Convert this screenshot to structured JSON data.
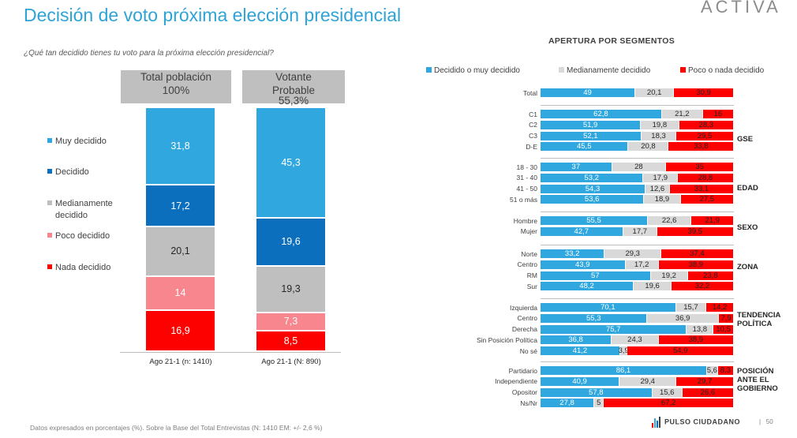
{
  "title": "Decisión de voto próxima elección presidencial",
  "logo": "ACTIVA",
  "question": "¿Qué tan decidido tienes tu voto para la próxima elección presidencial?",
  "footer": "Datos expresados en porcentajes (%). Sobre la Base del Total Entrevistas (N: 1410  EM: +/- 2,6 %)",
  "brand": "PULSO CIUDADANO",
  "page_number": "50",
  "colors": {
    "muy_decidido": "#30a7df",
    "decidido": "#0b6fbe",
    "medianamente": "#bfbfbf",
    "poco": "#f7868e",
    "nada": "#fd0000",
    "title": "#2fa3d6"
  },
  "chart_data": [
    {
      "type": "bar",
      "stacked": true,
      "headers": [
        {
          "line1": "Total población",
          "line2": "100%"
        },
        {
          "line1": "Votante",
          "line2": "Probable",
          "line3": "55,3%"
        }
      ],
      "categories": [
        "Ago 21-1 (n: 1410)",
        "Ago 21-1 (N: 890)"
      ],
      "series": [
        {
          "name": "Muy decidido",
          "values": [
            31.8,
            45.3
          ],
          "labels": [
            "31,8",
            "45,3"
          ],
          "color": "#30a7df"
        },
        {
          "name": "Decidido",
          "values": [
            17.2,
            19.6
          ],
          "labels": [
            "17,2",
            "19,6"
          ],
          "color": "#0b6fbe"
        },
        {
          "name": "Medianamente decidido",
          "values": [
            20.1,
            19.3
          ],
          "labels": [
            "20,1",
            "19,3"
          ],
          "color": "#bfbfbf"
        },
        {
          "name": "Poco decidido",
          "values": [
            14,
            7.3
          ],
          "labels": [
            "14",
            "7,3"
          ],
          "color": "#f7868e"
        },
        {
          "name": "Nada decidido",
          "values": [
            16.9,
            8.5
          ],
          "labels": [
            "16,9",
            "8,5"
          ],
          "color": "#fd0000"
        }
      ],
      "legend": [
        {
          "line1": "Muy decidido",
          "color": "#30a7df"
        },
        {
          "line1": "Decidido",
          "color": "#0b6fbe"
        },
        {
          "line1": "Medianamente",
          "line2": "decidido",
          "color": "#bfbfbf"
        },
        {
          "line1": "Poco decidido",
          "color": "#f7868e"
        },
        {
          "line1": "Nada decidido",
          "color": "#fd0000"
        }
      ]
    },
    {
      "type": "bar",
      "orientation": "horizontal",
      "stacked": true,
      "title": "APERTURA POR SEGMENTOS",
      "legend": [
        "Decidido o muy decidido",
        "Medianamente decidido",
        "Poco o nada decidido"
      ],
      "legend_colors": [
        "#30a7df",
        "#d9d9d9",
        "#fd0000"
      ],
      "groups": [
        {
          "name": "",
          "rows": [
            {
              "label": "Total",
              "values": [
                49,
                20.1,
                30.9
              ],
              "labels": [
                "49",
                "20,1",
                "30,9"
              ]
            }
          ]
        },
        {
          "name": "GSE",
          "rows": [
            {
              "label": "C1",
              "values": [
                62.8,
                21.2,
                16
              ],
              "labels": [
                "62,8",
                "21,2",
                "16"
              ]
            },
            {
              "label": "C2",
              "values": [
                51.9,
                19.8,
                28.3
              ],
              "labels": [
                "51,9",
                "19,8",
                "28,3"
              ]
            },
            {
              "label": "C3",
              "values": [
                52.1,
                18.3,
                29.5
              ],
              "labels": [
                "52,1",
                "18,3",
                "29,5"
              ]
            },
            {
              "label": "D-E",
              "values": [
                45.5,
                20.8,
                33.8
              ],
              "labels": [
                "45,5",
                "20,8",
                "33,8"
              ]
            }
          ]
        },
        {
          "name": "EDAD",
          "rows": [
            {
              "label": "18 - 30",
              "values": [
                37,
                28,
                35
              ],
              "labels": [
                "37",
                "28",
                "35"
              ]
            },
            {
              "label": "31 - 40",
              "values": [
                53.2,
                17.9,
                28.8
              ],
              "labels": [
                "53,2",
                "17,9",
                "28,8"
              ]
            },
            {
              "label": "41 - 50",
              "values": [
                54.3,
                12.6,
                33.1
              ],
              "labels": [
                "54,3",
                "12,6",
                "33,1"
              ]
            },
            {
              "label": "51 o más",
              "values": [
                53.6,
                18.9,
                27.5
              ],
              "labels": [
                "53,6",
                "18,9",
                "27,5"
              ]
            }
          ]
        },
        {
          "name": "SEXO",
          "rows": [
            {
              "label": "Hombre",
              "values": [
                55.5,
                22.6,
                21.9
              ],
              "labels": [
                "55,5",
                "22,6",
                "21,9"
              ]
            },
            {
              "label": "Mujer",
              "values": [
                42.7,
                17.7,
                39.5
              ],
              "labels": [
                "42,7",
                "17,7",
                "39,5"
              ]
            }
          ]
        },
        {
          "name": "ZONA",
          "rows": [
            {
              "label": "Norte",
              "values": [
                33.2,
                29.3,
                37.4
              ],
              "labels": [
                "33,2",
                "29,3",
                "37,4"
              ]
            },
            {
              "label": "Centro",
              "values": [
                43.9,
                17.2,
                38.9
              ],
              "labels": [
                "43,9",
                "17,2",
                "38,9"
              ]
            },
            {
              "label": "RM",
              "values": [
                57,
                19.2,
                23.8
              ],
              "labels": [
                "57",
                "19,2",
                "23,8"
              ]
            },
            {
              "label": "Sur",
              "values": [
                48.2,
                19.6,
                32.2
              ],
              "labels": [
                "48,2",
                "19,6",
                "32,2"
              ]
            }
          ]
        },
        {
          "name": "TENDENCIA POLÍTICA",
          "rows": [
            {
              "label": "Izquierda",
              "values": [
                70.1,
                15.7,
                14.2
              ],
              "labels": [
                "70,1",
                "15,7",
                "14,2"
              ]
            },
            {
              "label": "Centro",
              "values": [
                55.3,
                36.9,
                7.9
              ],
              "labels": [
                "55,3",
                "36,9",
                "7,9"
              ]
            },
            {
              "label": "Derecha",
              "values": [
                75.7,
                13.8,
                10.5
              ],
              "labels": [
                "75,7",
                "13,8",
                "10,5"
              ]
            },
            {
              "label": "Sin Posición Política",
              "values": [
                36.8,
                24.3,
                38.9
              ],
              "labels": [
                "36,8",
                "24,3",
                "38,9"
              ]
            },
            {
              "label": "No sé",
              "values": [
                41.2,
                3.9,
                54.9
              ],
              "labels": [
                "41,2",
                "3,9",
                "54,9"
              ]
            }
          ]
        },
        {
          "name": "POSICIÓN ANTE EL GOBIERNO",
          "rows": [
            {
              "label": "Partidario",
              "values": [
                86.1,
                5.6,
                8.3
              ],
              "labels": [
                "86,1",
                "5,6",
                "8,3"
              ]
            },
            {
              "label": "Independiente",
              "values": [
                40.9,
                29.4,
                29.7
              ],
              "labels": [
                "40,9",
                "29,4",
                "29,7"
              ]
            },
            {
              "label": "Opositor",
              "values": [
                57.8,
                15.6,
                26.6
              ],
              "labels": [
                "57,8",
                "15,6",
                "26,6"
              ]
            },
            {
              "label": "Ns/Nr",
              "values": [
                27.8,
                5,
                67.2
              ],
              "labels": [
                "27,8",
                "5",
                "67,2"
              ]
            }
          ]
        }
      ]
    }
  ]
}
